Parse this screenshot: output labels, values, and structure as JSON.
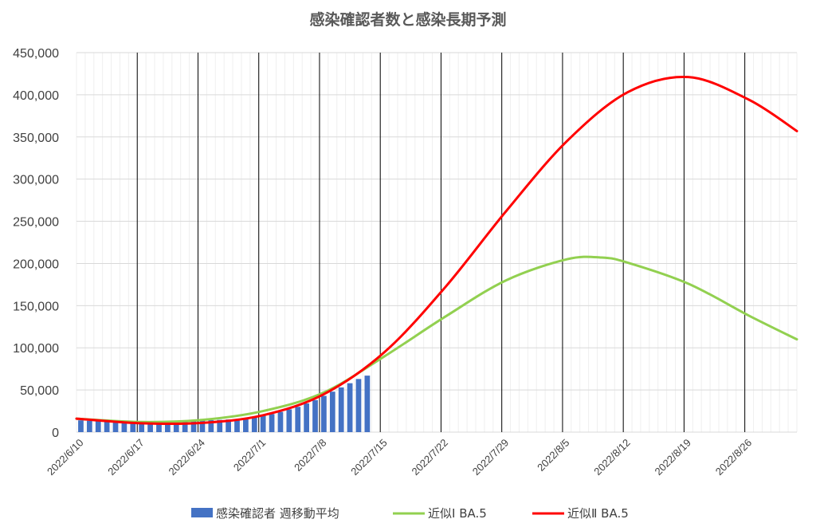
{
  "chart_data": {
    "type": "bar",
    "title": "感染確認者数と感染長期予測",
    "xlabel": "",
    "ylabel": "",
    "x_range": [
      "2022/6/10",
      "2022/8/31"
    ],
    "ylim": [
      0,
      450000
    ],
    "y_ticks": [
      "0",
      "50,000",
      "100,000",
      "150,000",
      "200,000",
      "250,000",
      "300,000",
      "350,000",
      "400,000",
      "450,000"
    ],
    "x_ticks": [
      "2022/6/10",
      "2022/6/17",
      "2022/6/24",
      "2022/7/1",
      "2022/7/8",
      "2022/7/15",
      "2022/7/22",
      "2022/7/29",
      "2022/8/5",
      "2022/8/12",
      "2022/8/19",
      "2022/8/26"
    ],
    "grid": {
      "horizontal": true,
      "weekly_vertical_lines": true
    },
    "legend_position": "bottom",
    "bars": {
      "name": "感染確認者 週移動平均",
      "color": "#4472C4",
      "points": [
        [
          "2022/6/10",
          14000
        ],
        [
          "2022/6/11",
          13500
        ],
        [
          "2022/6/12",
          13200
        ],
        [
          "2022/6/13",
          12800
        ],
        [
          "2022/6/14",
          12500
        ],
        [
          "2022/6/15",
          12500
        ],
        [
          "2022/6/16",
          12700
        ],
        [
          "2022/6/17",
          12900
        ],
        [
          "2022/6/18",
          13000
        ],
        [
          "2022/6/19",
          13000
        ],
        [
          "2022/6/20",
          13100
        ],
        [
          "2022/6/21",
          13300
        ],
        [
          "2022/6/22",
          13500
        ],
        [
          "2022/6/23",
          13800
        ],
        [
          "2022/6/24",
          14000
        ],
        [
          "2022/6/25",
          14200
        ],
        [
          "2022/6/26",
          14500
        ],
        [
          "2022/6/27",
          15000
        ],
        [
          "2022/6/28",
          15500
        ],
        [
          "2022/6/29",
          16500
        ],
        [
          "2022/6/30",
          18000
        ],
        [
          "2022/7/1",
          19500
        ],
        [
          "2022/7/2",
          21500
        ],
        [
          "2022/7/3",
          24000
        ],
        [
          "2022/7/4",
          27000
        ],
        [
          "2022/7/5",
          30000
        ],
        [
          "2022/7/6",
          34000
        ],
        [
          "2022/7/7",
          38000
        ],
        [
          "2022/7/8",
          43000
        ],
        [
          "2022/7/9",
          48000
        ],
        [
          "2022/7/10",
          53000
        ],
        [
          "2022/7/11",
          58000
        ],
        [
          "2022/7/12",
          63000
        ],
        [
          "2022/7/13",
          67000
        ]
      ]
    },
    "series": [
      {
        "name": "近似Ⅰ BA.5",
        "color": "#92D050",
        "points": [
          [
            "2022/6/10",
            16000
          ],
          [
            "2022/6/17",
            12000
          ],
          [
            "2022/6/24",
            14500
          ],
          [
            "2022/7/1",
            25000
          ],
          [
            "2022/7/8",
            47000
          ],
          [
            "2022/7/15",
            90000
          ],
          [
            "2022/7/22",
            137000
          ],
          [
            "2022/7/29",
            180000
          ],
          [
            "2022/8/5",
            205000
          ],
          [
            "2022/8/9",
            207000
          ],
          [
            "2022/8/12",
            201000
          ],
          [
            "2022/8/19",
            176000
          ],
          [
            "2022/8/26",
            138000
          ],
          [
            "2022/8/31",
            110000
          ]
        ]
      },
      {
        "name": "近似Ⅱ BA.5",
        "color": "#FF0000",
        "points": [
          [
            "2022/6/10",
            16000
          ],
          [
            "2022/6/17",
            10500
          ],
          [
            "2022/6/24",
            11000
          ],
          [
            "2022/7/1",
            20000
          ],
          [
            "2022/7/8",
            45000
          ],
          [
            "2022/7/15",
            95000
          ],
          [
            "2022/7/22",
            172000
          ],
          [
            "2022/7/29",
            262000
          ],
          [
            "2022/8/5",
            345000
          ],
          [
            "2022/8/12",
            403000
          ],
          [
            "2022/8/19",
            421000
          ],
          [
            "2022/8/26",
            394000
          ],
          [
            "2022/8/31",
            357000
          ]
        ]
      }
    ]
  }
}
